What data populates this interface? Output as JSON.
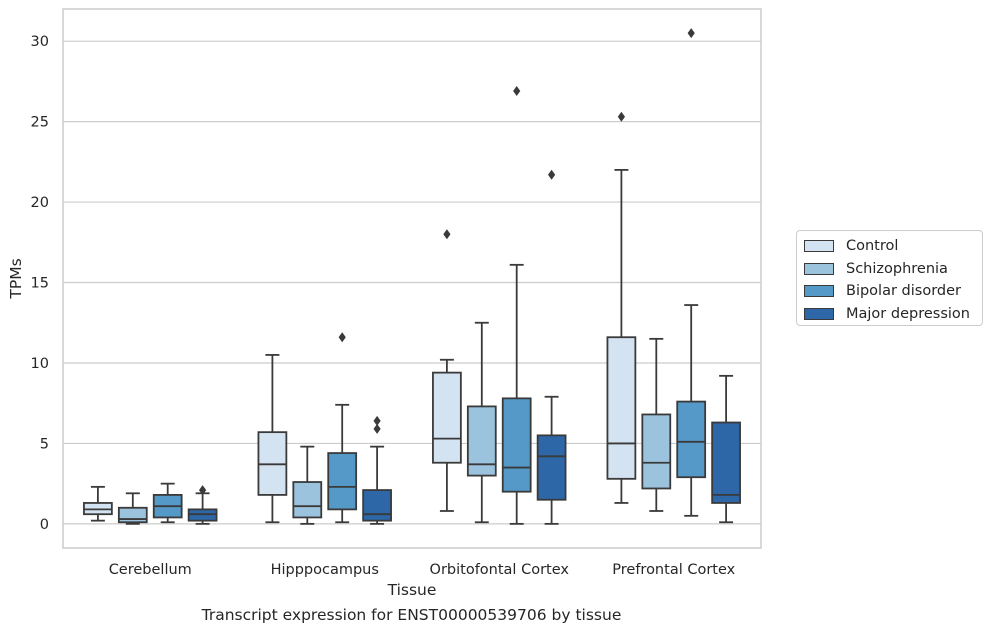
{
  "caption": "Transcript expression for ENST00000539706 by tissue",
  "chart_data": {
    "type": "box",
    "xlabel": "Tissue",
    "ylabel": "TPMs",
    "ylim": [
      -1.5,
      32
    ],
    "yticks": [
      0,
      5,
      10,
      15,
      20,
      25,
      30
    ],
    "grid": "horizontal",
    "legend_position": "right",
    "categories": [
      "Cerebellum",
      "Hipppocampus",
      "Orbitofontal Cortex",
      "Prefrontal Cortex"
    ],
    "series": [
      {
        "name": "Control",
        "color": "#d4e3f1",
        "boxes": [
          {
            "whisker_low": 0.2,
            "q1": 0.6,
            "median": 0.9,
            "q3": 1.3,
            "whisker_high": 2.3,
            "outliers": []
          },
          {
            "whisker_low": 0.1,
            "q1": 1.8,
            "median": 3.7,
            "q3": 5.7,
            "whisker_high": 10.5,
            "outliers": []
          },
          {
            "whisker_low": 0.8,
            "q1": 3.8,
            "median": 5.3,
            "q3": 9.4,
            "whisker_high": 10.2,
            "outliers": [
              18.0
            ]
          },
          {
            "whisker_low": 1.3,
            "q1": 2.8,
            "median": 5.0,
            "q3": 11.6,
            "whisker_high": 22.0,
            "outliers": [
              25.3
            ]
          }
        ]
      },
      {
        "name": "Schizophrenia",
        "color": "#9cc3de",
        "boxes": [
          {
            "whisker_low": 0.0,
            "q1": 0.1,
            "median": 0.3,
            "q3": 1.0,
            "whisker_high": 1.9,
            "outliers": []
          },
          {
            "whisker_low": 0.0,
            "q1": 0.4,
            "median": 1.1,
            "q3": 2.6,
            "whisker_high": 4.8,
            "outliers": []
          },
          {
            "whisker_low": 0.1,
            "q1": 3.0,
            "median": 3.7,
            "q3": 7.3,
            "whisker_high": 12.5,
            "outliers": []
          },
          {
            "whisker_low": 0.8,
            "q1": 2.2,
            "median": 3.8,
            "q3": 6.8,
            "whisker_high": 11.5,
            "outliers": []
          }
        ]
      },
      {
        "name": "Bipolar disorder",
        "color": "#5499c7",
        "boxes": [
          {
            "whisker_low": 0.1,
            "q1": 0.4,
            "median": 1.1,
            "q3": 1.8,
            "whisker_high": 2.5,
            "outliers": []
          },
          {
            "whisker_low": 0.1,
            "q1": 0.9,
            "median": 2.3,
            "q3": 4.4,
            "whisker_high": 7.4,
            "outliers": [
              11.6
            ]
          },
          {
            "whisker_low": 0.0,
            "q1": 2.0,
            "median": 3.5,
            "q3": 7.8,
            "whisker_high": 16.1,
            "outliers": [
              26.9
            ]
          },
          {
            "whisker_low": 0.5,
            "q1": 2.9,
            "median": 5.1,
            "q3": 7.6,
            "whisker_high": 13.6,
            "outliers": [
              30.5
            ]
          }
        ]
      },
      {
        "name": "Major depression",
        "color": "#2d67a8",
        "boxes": [
          {
            "whisker_low": 0.0,
            "q1": 0.2,
            "median": 0.6,
            "q3": 0.9,
            "whisker_high": 1.9,
            "outliers": [
              2.1
            ]
          },
          {
            "whisker_low": 0.0,
            "q1": 0.2,
            "median": 0.6,
            "q3": 2.1,
            "whisker_high": 4.8,
            "outliers": [
              5.9,
              6.4
            ]
          },
          {
            "whisker_low": 0.0,
            "q1": 1.5,
            "median": 4.2,
            "q3": 5.5,
            "whisker_high": 7.9,
            "outliers": [
              21.7
            ]
          },
          {
            "whisker_low": 0.1,
            "q1": 1.3,
            "median": 1.8,
            "q3": 6.3,
            "whisker_high": 9.2,
            "outliers": []
          }
        ]
      }
    ]
  }
}
